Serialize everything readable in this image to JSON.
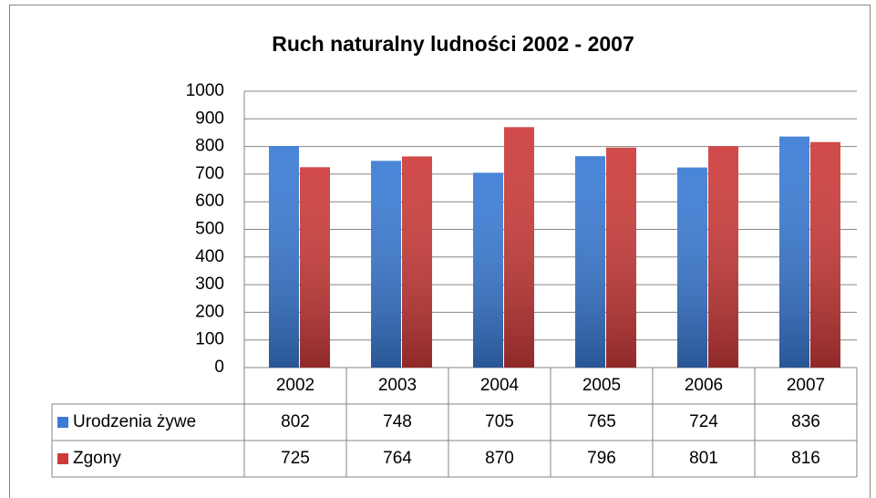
{
  "chart_data": {
    "type": "bar",
    "title": "Ruch naturalny ludności 2002 - 2007",
    "categories": [
      "2002",
      "2003",
      "2004",
      "2005",
      "2006",
      "2007"
    ],
    "series": [
      {
        "name": "Urodzenia żywe",
        "color": "#3a7bd5",
        "values": [
          802,
          748,
          705,
          765,
          724,
          836
        ]
      },
      {
        "name": "Zgony",
        "color": "#cc3b39",
        "values": [
          725,
          764,
          870,
          796,
          801,
          816
        ]
      }
    ],
    "ylim": [
      0,
      1000
    ],
    "yticks": [
      0,
      100,
      200,
      300,
      400,
      500,
      600,
      700,
      800,
      900,
      1000
    ],
    "grid": true,
    "data_table": true
  }
}
